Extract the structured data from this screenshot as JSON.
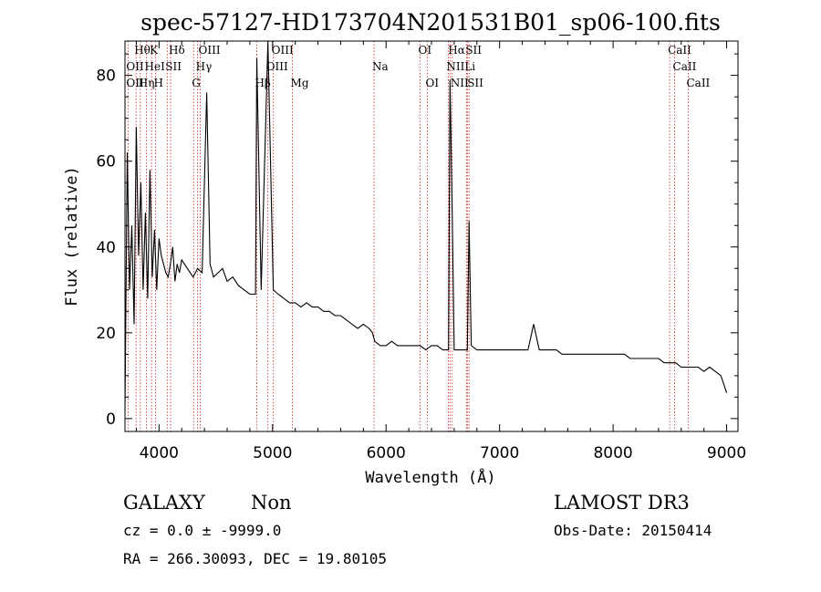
{
  "chart_data": {
    "type": "line",
    "title": "spec-57127-HD173704N201531B01_sp06-100.fits",
    "xlabel": "Wavelength (Å)",
    "ylabel": "Flux (relative)",
    "xlim": [
      3700,
      9100
    ],
    "ylim": [
      -3,
      88
    ],
    "x_ticks": [
      4000,
      5000,
      6000,
      7000,
      8000,
      9000
    ],
    "y_ticks": [
      0,
      20,
      40,
      60,
      80
    ],
    "series": [
      {
        "name": "spectrum",
        "x": [
          3700,
          3720,
          3740,
          3760,
          3780,
          3800,
          3820,
          3840,
          3860,
          3880,
          3900,
          3920,
          3940,
          3960,
          3980,
          4000,
          4020,
          4040,
          4060,
          4080,
          4100,
          4120,
          4140,
          4160,
          4180,
          4200,
          4250,
          4300,
          4340,
          4380,
          4420,
          4450,
          4480,
          4520,
          4560,
          4600,
          4650,
          4700,
          4750,
          4800,
          4850,
          4861,
          4900,
          4959,
          5007,
          5050,
          5100,
          5150,
          5200,
          5250,
          5300,
          5350,
          5400,
          5450,
          5500,
          5550,
          5600,
          5650,
          5700,
          5750,
          5800,
          5850,
          5880,
          5900,
          5950,
          6000,
          6050,
          6100,
          6150,
          6200,
          6250,
          6300,
          6350,
          6400,
          6450,
          6500,
          6550,
          6563,
          6583,
          6600,
          6650,
          6700,
          6716,
          6731,
          6750,
          6800,
          6850,
          6870,
          6900,
          6950,
          7000,
          7050,
          7100,
          7150,
          7200,
          7250,
          7300,
          7350,
          7400,
          7450,
          7500,
          7550,
          7600,
          7650,
          7700,
          7750,
          7800,
          7850,
          7900,
          7950,
          8000,
          8050,
          8100,
          8150,
          8200,
          8250,
          8300,
          8350,
          8400,
          8450,
          8500,
          8550,
          8600,
          8650,
          8700,
          8750,
          8800,
          8850,
          8900,
          8950,
          9000
        ],
        "y": [
          2,
          62,
          30,
          45,
          22,
          68,
          38,
          55,
          30,
          48,
          28,
          58,
          33,
          44,
          30,
          42,
          38,
          36,
          34,
          33,
          36,
          40,
          32,
          36,
          34,
          37,
          35,
          33,
          35,
          34,
          76,
          36,
          33,
          34,
          35,
          32,
          33,
          31,
          30,
          29,
          29,
          84,
          30,
          90,
          30,
          29,
          28,
          27,
          27,
          26,
          27,
          26,
          26,
          25,
          25,
          24,
          24,
          23,
          22,
          21,
          22,
          21,
          20,
          18,
          17,
          17,
          18,
          17,
          17,
          17,
          17,
          17,
          16,
          17,
          17,
          16,
          16,
          79,
          47,
          16,
          16,
          16,
          16,
          46,
          17,
          16,
          16,
          16,
          16,
          16,
          16,
          16,
          16,
          16,
          16,
          16,
          22,
          16,
          16,
          16,
          16,
          15,
          15,
          15,
          15,
          15,
          15,
          15,
          15,
          15,
          15,
          15,
          15,
          14,
          14,
          14,
          14,
          14,
          14,
          13,
          13,
          13,
          12,
          12,
          12,
          12,
          11,
          12,
          11,
          10,
          6
        ]
      }
    ],
    "lines": [
      {
        "name": "OII",
        "x": 3727,
        "row": 2
      },
      {
        "name": "OII",
        "x": 3727,
        "row": 3
      },
      {
        "name": "Hθ",
        "x": 3798,
        "row": 1
      },
      {
        "name": "Hη",
        "x": 3835,
        "row": 3
      },
      {
        "name": "HeI",
        "x": 3889,
        "row": 2
      },
      {
        "name": "K",
        "x": 3934,
        "row": 1
      },
      {
        "name": "H",
        "x": 3969,
        "row": 3
      },
      {
        "name": "SII",
        "x": 4072,
        "row": 2
      },
      {
        "name": "Hδ",
        "x": 4102,
        "row": 1
      },
      {
        "name": "OIII",
        "x": 4363,
        "row": 1
      },
      {
        "name": "Hγ",
        "x": 4340,
        "row": 2
      },
      {
        "name": "G",
        "x": 4305,
        "row": 3
      },
      {
        "name": "Hβ",
        "x": 4861,
        "row": 3
      },
      {
        "name": "OIII",
        "x": 4959,
        "row": 2
      },
      {
        "name": "OIII",
        "x": 5007,
        "row": 1
      },
      {
        "name": "Mg",
        "x": 5175,
        "row": 3
      },
      {
        "name": "Na",
        "x": 5894,
        "row": 2
      },
      {
        "name": "OI",
        "x": 6300,
        "row": 1
      },
      {
        "name": "OI",
        "x": 6364,
        "row": 3
      },
      {
        "name": "Hα",
        "x": 6563,
        "row": 1
      },
      {
        "name": "NII",
        "x": 6548,
        "row": 2
      },
      {
        "name": "NII",
        "x": 6583,
        "row": 3
      },
      {
        "name": "SII",
        "x": 6716,
        "row": 1
      },
      {
        "name": "Li",
        "x": 6708,
        "row": 2
      },
      {
        "name": "SII",
        "x": 6731,
        "row": 3
      },
      {
        "name": "CaII",
        "x": 8498,
        "row": 1
      },
      {
        "name": "CaII",
        "x": 8542,
        "row": 2
      },
      {
        "name": "CaII",
        "x": 8662,
        "row": 3
      }
    ],
    "line_marks_x": [
      3727,
      3798,
      3835,
      3889,
      3934,
      3969,
      4072,
      4102,
      4305,
      4340,
      4363,
      4861,
      4959,
      5007,
      5175,
      5894,
      6300,
      6364,
      6548,
      6563,
      6583,
      6708,
      6716,
      6731,
      8498,
      8542,
      8662
    ]
  },
  "footer": {
    "object_class": "GALAXY",
    "subclass": "Non",
    "survey": "LAMOST DR3",
    "cz": "cz = 0.0 ± -9999.0",
    "obs_date": "Obs-Date: 20150414",
    "radec": "RA = 266.30093, DEC =  19.80105"
  },
  "colors": {
    "line_marker": "#cc2222",
    "spectrum": "#000000"
  }
}
